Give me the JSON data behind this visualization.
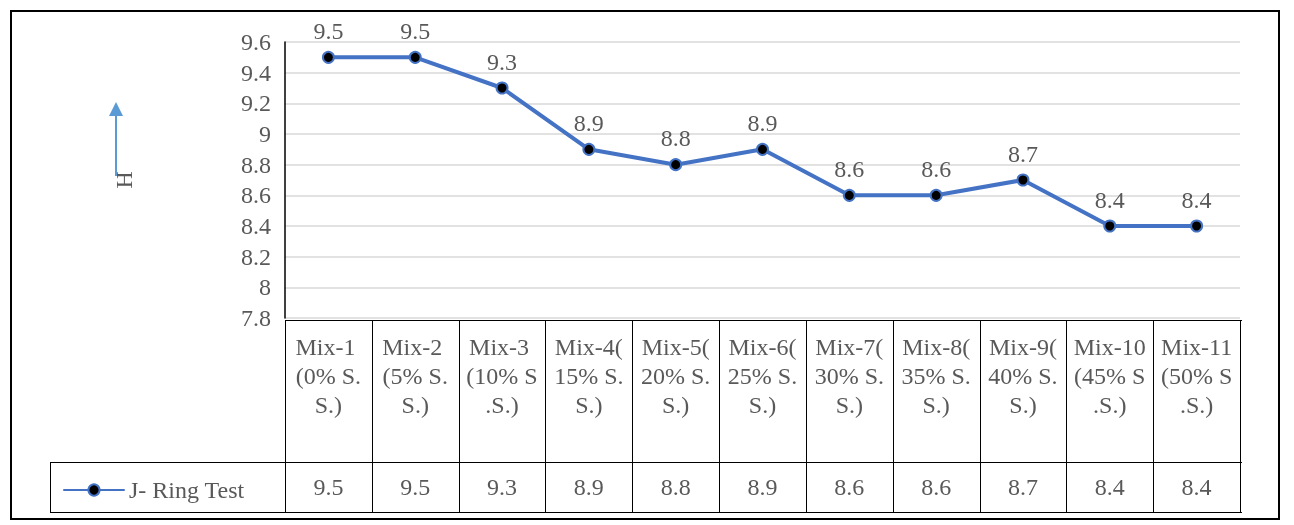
{
  "chart_data": {
    "type": "line",
    "ylabel": "H",
    "categories": [
      "Mix-1 (0% S.S.)",
      "Mix-2 (5% S.S.)",
      "Mix-3 (10% S.S.)",
      "Mix-4(15% S.S.)",
      "Mix-5(20% S.S.)",
      "Mix-6(25% S.S.)",
      "Mix-7(30% S.S.)",
      "Mix-8(35% S.S.)",
      "Mix-9(40% S.S.)",
      "Mix-10(45% S.S.)",
      "Mix-11(50% S.S.)"
    ],
    "series": [
      {
        "name": "J- Ring Test",
        "color": "#4472c4",
        "values": [
          9.5,
          9.5,
          9.3,
          8.9,
          8.8,
          8.9,
          8.6,
          8.6,
          8.7,
          8.4,
          8.4
        ],
        "value_labels": [
          "9.5",
          "9.5",
          "9.3",
          "8.9",
          "8.8",
          "8.9",
          "8.6",
          "8.6",
          "8.7",
          "8.4",
          "8.4"
        ]
      }
    ],
    "ylim": [
      7.8,
      9.6
    ],
    "yticks": [
      7.8,
      8,
      8.2,
      8.4,
      8.6,
      8.8,
      9,
      9.2,
      9.4,
      9.6
    ],
    "grid": "y",
    "legend": "bottom left",
    "marker": "circle",
    "line_style": "solid",
    "data_labels": true
  }
}
